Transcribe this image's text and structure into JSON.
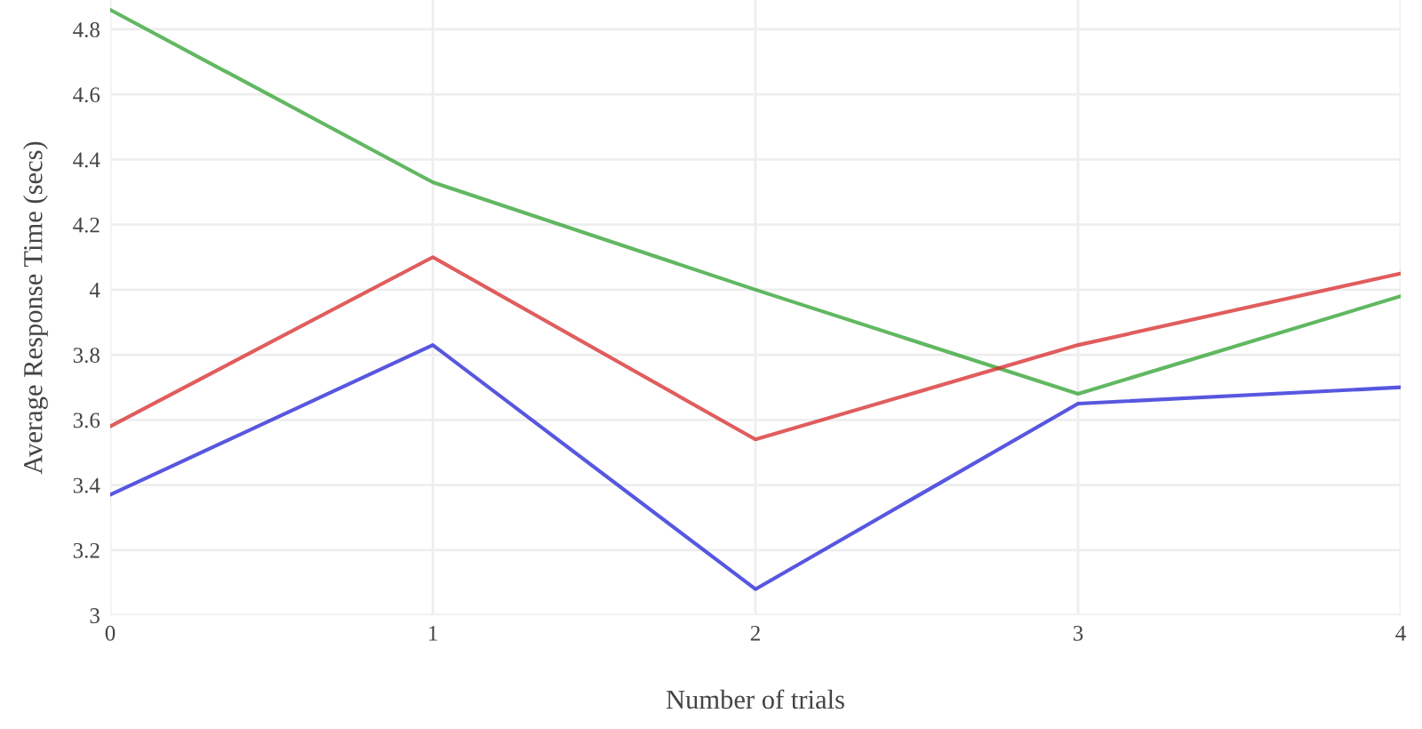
{
  "chart_data": {
    "type": "line",
    "xlabel": "Number of trials",
    "ylabel": "Average Response Time (secs)",
    "x": [
      0,
      1,
      2,
      3,
      4
    ],
    "series": [
      {
        "color": "#2ca02c",
        "values": [
          4.86,
          4.33,
          4.0,
          3.68,
          3.98
        ]
      },
      {
        "color": "#d62728",
        "values": [
          3.58,
          4.1,
          3.54,
          3.83,
          4.05
        ]
      },
      {
        "color": "#1f1fd6",
        "values": [
          3.37,
          3.83,
          3.08,
          3.65,
          3.7
        ]
      }
    ],
    "xlim": [
      0,
      4
    ],
    "ylim": [
      3,
      4.89
    ],
    "xticks": [
      0,
      1,
      2,
      3,
      4
    ],
    "yticks": [
      3,
      3.2,
      3.4,
      3.6,
      3.8,
      4,
      4.2,
      4.4,
      4.6,
      4.8
    ],
    "grid": true,
    "legend": false,
    "marker": "none",
    "line_style": "solid"
  }
}
